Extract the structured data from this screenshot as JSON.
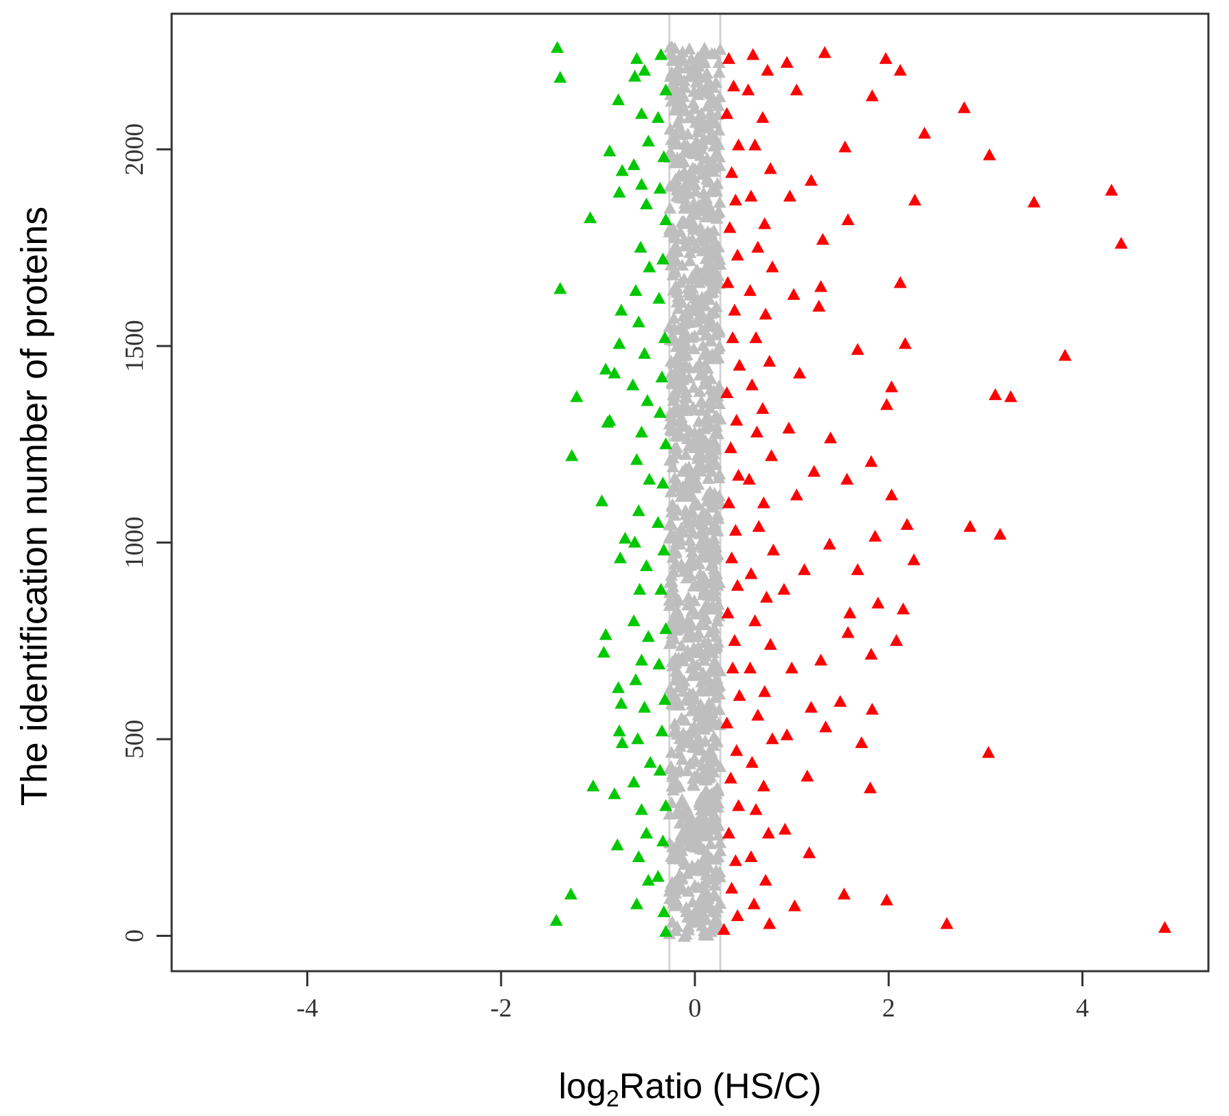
{
  "chart_data": {
    "type": "scatter",
    "marker": "triangle",
    "xlabel_parts": [
      "log",
      "2",
      "Ratio (HS/C)"
    ],
    "ylabel": "The identification number of proteins",
    "xlim": [
      -5.4,
      5.3
    ],
    "ylim": [
      -90,
      2345
    ],
    "x_ticks": [
      -4,
      -2,
      0,
      2,
      4
    ],
    "x_tick_labels": [
      "-4",
      "-2",
      "0",
      "2",
      "4"
    ],
    "y_ticks": [
      0,
      500,
      1000,
      1500,
      2000
    ],
    "y_tick_labels": [
      "0",
      "500",
      "1000",
      "1500",
      "2000"
    ],
    "threshold_lines": [
      -0.263,
      0.263
    ],
    "colors": {
      "down": "#00c800",
      "unchanged": "#bebebe",
      "up": "#ff0000",
      "threshold": "#d3d3d3",
      "axis": "#333333"
    },
    "series": [
      {
        "category": "down",
        "points": [
          [
            -1.42,
            2258
          ],
          [
            -1.39,
            2182
          ],
          [
            -0.79,
            2125
          ],
          [
            -0.88,
            1995
          ],
          [
            -0.75,
            1945
          ],
          [
            -0.78,
            1890
          ],
          [
            -1.08,
            1825
          ],
          [
            -1.39,
            1645
          ],
          [
            -0.76,
            1590
          ],
          [
            -0.78,
            1505
          ],
          [
            -0.92,
            1440
          ],
          [
            -0.83,
            1430
          ],
          [
            -1.22,
            1370
          ],
          [
            -0.9,
            1305
          ],
          [
            -0.88,
            1310
          ],
          [
            -1.27,
            1220
          ],
          [
            -0.96,
            1105
          ],
          [
            -0.72,
            1010
          ],
          [
            -0.77,
            960
          ],
          [
            -0.92,
            765
          ],
          [
            -0.94,
            720
          ],
          [
            -0.79,
            630
          ],
          [
            -0.76,
            590
          ],
          [
            -0.78,
            520
          ],
          [
            -0.75,
            490
          ],
          [
            -1.05,
            380
          ],
          [
            -0.83,
            360
          ],
          [
            -0.8,
            230
          ],
          [
            -1.28,
            105
          ],
          [
            -1.43,
            38
          ],
          [
            -0.6,
            2230
          ],
          [
            -0.52,
            2200
          ],
          [
            -0.62,
            2185
          ],
          [
            -0.55,
            2090
          ],
          [
            -0.48,
            2020
          ],
          [
            -0.63,
            1960
          ],
          [
            -0.55,
            1910
          ],
          [
            -0.5,
            1860
          ],
          [
            -0.56,
            1750
          ],
          [
            -0.47,
            1700
          ],
          [
            -0.61,
            1640
          ],
          [
            -0.58,
            1560
          ],
          [
            -0.52,
            1480
          ],
          [
            -0.64,
            1400
          ],
          [
            -0.49,
            1360
          ],
          [
            -0.55,
            1280
          ],
          [
            -0.6,
            1210
          ],
          [
            -0.47,
            1160
          ],
          [
            -0.58,
            1080
          ],
          [
            -0.62,
            1000
          ],
          [
            -0.5,
            940
          ],
          [
            -0.57,
            880
          ],
          [
            -0.63,
            800
          ],
          [
            -0.48,
            760
          ],
          [
            -0.55,
            700
          ],
          [
            -0.61,
            650
          ],
          [
            -0.52,
            580
          ],
          [
            -0.59,
            500
          ],
          [
            -0.46,
            440
          ],
          [
            -0.63,
            390
          ],
          [
            -0.55,
            320
          ],
          [
            -0.5,
            260
          ],
          [
            -0.58,
            200
          ],
          [
            -0.48,
            140
          ],
          [
            -0.6,
            80
          ],
          [
            -0.35,
            2240
          ],
          [
            -0.3,
            2150
          ],
          [
            -0.38,
            2080
          ],
          [
            -0.32,
            1980
          ],
          [
            -0.36,
            1900
          ],
          [
            -0.3,
            1820
          ],
          [
            -0.33,
            1720
          ],
          [
            -0.37,
            1620
          ],
          [
            -0.31,
            1520
          ],
          [
            -0.34,
            1420
          ],
          [
            -0.36,
            1330
          ],
          [
            -0.3,
            1250
          ],
          [
            -0.33,
            1150
          ],
          [
            -0.38,
            1050
          ],
          [
            -0.32,
            980
          ],
          [
            -0.35,
            880
          ],
          [
            -0.3,
            780
          ],
          [
            -0.37,
            690
          ],
          [
            -0.31,
            600
          ],
          [
            -0.34,
            520
          ],
          [
            -0.36,
            420
          ],
          [
            -0.3,
            330
          ],
          [
            -0.33,
            240
          ],
          [
            -0.38,
            150
          ],
          [
            -0.32,
            60
          ],
          [
            -0.3,
            10
          ]
        ]
      },
      {
        "category": "up",
        "points": [
          [
            1.34,
            2245
          ],
          [
            1.97,
            2230
          ],
          [
            2.12,
            2200
          ],
          [
            1.83,
            2135
          ],
          [
            2.78,
            2105
          ],
          [
            2.37,
            2040
          ],
          [
            1.55,
            2005
          ],
          [
            3.04,
            1985
          ],
          [
            1.2,
            1920
          ],
          [
            4.3,
            1895
          ],
          [
            3.5,
            1865
          ],
          [
            2.27,
            1870
          ],
          [
            1.58,
            1820
          ],
          [
            4.4,
            1760
          ],
          [
            1.32,
            1770
          ],
          [
            2.12,
            1660
          ],
          [
            1.3,
            1650
          ],
          [
            1.28,
            1600
          ],
          [
            2.17,
            1505
          ],
          [
            1.68,
            1490
          ],
          [
            3.82,
            1475
          ],
          [
            2.03,
            1395
          ],
          [
            3.1,
            1375
          ],
          [
            3.26,
            1370
          ],
          [
            1.98,
            1350
          ],
          [
            1.4,
            1265
          ],
          [
            1.82,
            1205
          ],
          [
            1.23,
            1180
          ],
          [
            1.57,
            1160
          ],
          [
            2.03,
            1120
          ],
          [
            2.84,
            1040
          ],
          [
            3.15,
            1020
          ],
          [
            2.19,
            1045
          ],
          [
            1.86,
            1015
          ],
          [
            1.39,
            995
          ],
          [
            2.26,
            955
          ],
          [
            1.68,
            930
          ],
          [
            1.13,
            930
          ],
          [
            1.89,
            845
          ],
          [
            2.15,
            830
          ],
          [
            1.6,
            820
          ],
          [
            1.58,
            770
          ],
          [
            2.08,
            750
          ],
          [
            1.82,
            715
          ],
          [
            1.3,
            700
          ],
          [
            1.2,
            580
          ],
          [
            1.5,
            595
          ],
          [
            1.83,
            575
          ],
          [
            1.35,
            530
          ],
          [
            1.72,
            490
          ],
          [
            3.03,
            465
          ],
          [
            1.16,
            405
          ],
          [
            1.81,
            375
          ],
          [
            1.18,
            210
          ],
          [
            1.54,
            105
          ],
          [
            1.98,
            90
          ],
          [
            2.6,
            30
          ],
          [
            4.85,
            20
          ],
          [
            0.95,
            2220
          ],
          [
            1.05,
            2150
          ],
          [
            0.98,
            1880
          ],
          [
            1.02,
            1630
          ],
          [
            1.08,
            1430
          ],
          [
            0.97,
            1290
          ],
          [
            1.05,
            1120
          ],
          [
            0.92,
            880
          ],
          [
            1.0,
            680
          ],
          [
            0.95,
            510
          ],
          [
            0.93,
            270
          ],
          [
            1.03,
            75
          ],
          [
            0.6,
            2240
          ],
          [
            0.75,
            2200
          ],
          [
            0.55,
            2150
          ],
          [
            0.7,
            2080
          ],
          [
            0.62,
            2010
          ],
          [
            0.78,
            1950
          ],
          [
            0.58,
            1880
          ],
          [
            0.72,
            1810
          ],
          [
            0.65,
            1750
          ],
          [
            0.8,
            1700
          ],
          [
            0.57,
            1640
          ],
          [
            0.73,
            1580
          ],
          [
            0.63,
            1520
          ],
          [
            0.77,
            1460
          ],
          [
            0.59,
            1400
          ],
          [
            0.7,
            1340
          ],
          [
            0.64,
            1280
          ],
          [
            0.79,
            1220
          ],
          [
            0.56,
            1160
          ],
          [
            0.71,
            1100
          ],
          [
            0.66,
            1040
          ],
          [
            0.81,
            980
          ],
          [
            0.58,
            920
          ],
          [
            0.74,
            860
          ],
          [
            0.62,
            800
          ],
          [
            0.78,
            740
          ],
          [
            0.57,
            680
          ],
          [
            0.72,
            620
          ],
          [
            0.65,
            560
          ],
          [
            0.8,
            500
          ],
          [
            0.59,
            440
          ],
          [
            0.71,
            380
          ],
          [
            0.63,
            320
          ],
          [
            0.76,
            260
          ],
          [
            0.58,
            200
          ],
          [
            0.73,
            140
          ],
          [
            0.61,
            80
          ],
          [
            0.77,
            30
          ],
          [
            0.35,
            2230
          ],
          [
            0.4,
            2160
          ],
          [
            0.33,
            2090
          ],
          [
            0.45,
            2010
          ],
          [
            0.38,
            1940
          ],
          [
            0.42,
            1870
          ],
          [
            0.36,
            1800
          ],
          [
            0.44,
            1730
          ],
          [
            0.34,
            1660
          ],
          [
            0.41,
            1590
          ],
          [
            0.39,
            1520
          ],
          [
            0.46,
            1450
          ],
          [
            0.33,
            1380
          ],
          [
            0.43,
            1310
          ],
          [
            0.37,
            1240
          ],
          [
            0.45,
            1170
          ],
          [
            0.35,
            1100
          ],
          [
            0.42,
            1030
          ],
          [
            0.38,
            960
          ],
          [
            0.44,
            890
          ],
          [
            0.34,
            820
          ],
          [
            0.41,
            750
          ],
          [
            0.39,
            680
          ],
          [
            0.46,
            610
          ],
          [
            0.33,
            540
          ],
          [
            0.43,
            470
          ],
          [
            0.37,
            400
          ],
          [
            0.45,
            330
          ],
          [
            0.35,
            260
          ],
          [
            0.42,
            190
          ],
          [
            0.38,
            120
          ],
          [
            0.44,
            50
          ],
          [
            0.3,
            15
          ]
        ]
      },
      {
        "category": "unchanged",
        "band": {
          "x_range": [
            -0.263,
            0.263
          ],
          "y_range": [
            0,
            2265
          ]
        }
      }
    ]
  }
}
